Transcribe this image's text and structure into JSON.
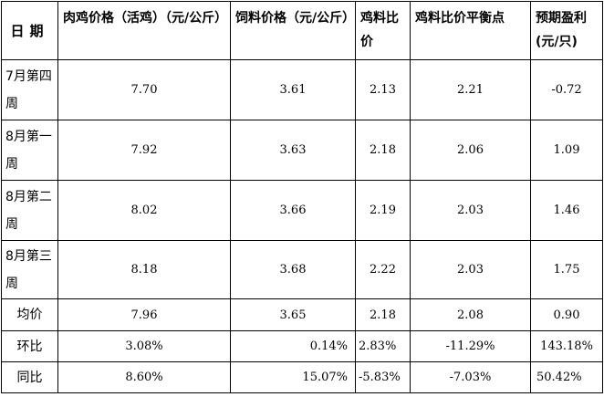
{
  "headers": [
    "日期",
    "肉鸡价格（活鸡）（元/公斤）",
    "饲料价格（元/公斤）",
    "鸡料比价",
    "鸡料比价平衡点",
    "预期盈利(元/只)"
  ],
  "rows": [
    {
      "label": "7月第四周",
      "chicken": "7.70",
      "feed": "3.61",
      "ratio": "2.13",
      "balance": "2.21",
      "profit": "-0.72"
    },
    {
      "label": "8月第一周",
      "chicken": "7.92",
      "feed": "3.63",
      "ratio": "2.18",
      "balance": "2.06",
      "profit": "1.09"
    },
    {
      "label": "8月第二周",
      "chicken": "8.02",
      "feed": "3.66",
      "ratio": "2.19",
      "balance": "2.03",
      "profit": "1.46"
    },
    {
      "label": "8月第三周",
      "chicken": "8.18",
      "feed": "3.68",
      "ratio": "2.22",
      "balance": "2.03",
      "profit": "1.75"
    },
    {
      "label": "均价",
      "chicken": "7.96",
      "feed": "3.65",
      "ratio": "2.18",
      "balance": "2.08",
      "profit": "0.90"
    },
    {
      "label": "环比",
      "chicken": "3.08%",
      "feed": "0.14%",
      "ratio": "2.83%",
      "balance": "-11.29%",
      "profit": "143.18%"
    },
    {
      "label": "同比",
      "chicken": "8.60%",
      "feed": "15.07%",
      "ratio": "-5.83%",
      "balance": "-7.03%",
      "profit": "50.42%"
    }
  ]
}
